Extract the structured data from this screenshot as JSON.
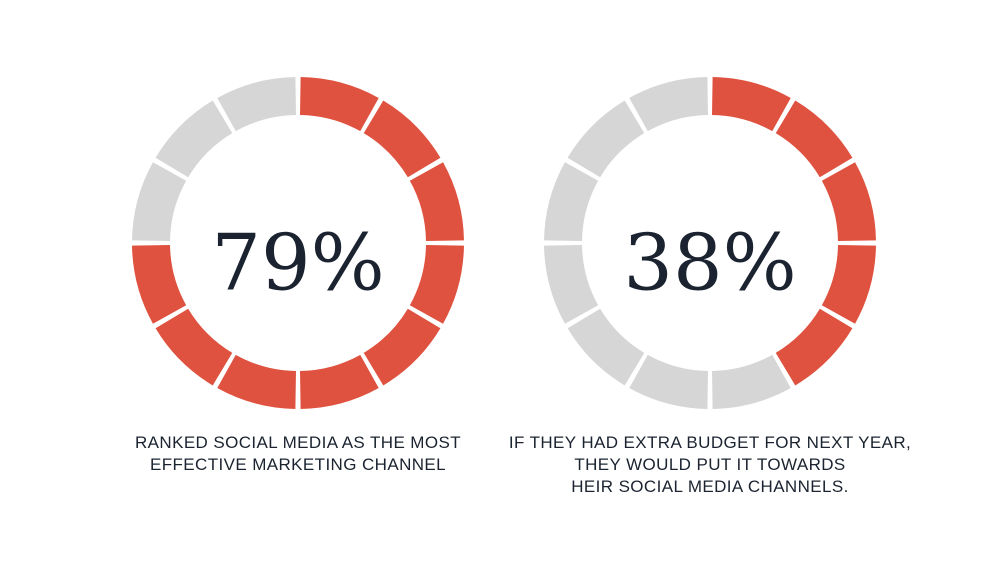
{
  "colors": {
    "filled": "#e05240",
    "empty": "#d6d6d6",
    "text": "#1b2330"
  },
  "chart_data": [
    {
      "type": "pie",
      "segments_total": 12,
      "values": [
        79,
        21
      ],
      "value_label": "79%",
      "caption": [
        "RANKED SOCIAL MEDIA AS THE MOST",
        "EFFECTIVE MARKETING CHANNEL"
      ]
    },
    {
      "type": "pie",
      "segments_total": 12,
      "values": [
        38,
        62
      ],
      "value_label": "38%",
      "caption": [
        "IF THEY HAD EXTRA BUDGET FOR NEXT YEAR,",
        "THEY WOULD PUT IT TOWARDS",
        "HEIR SOCIAL MEDIA CHANNELS."
      ]
    }
  ]
}
